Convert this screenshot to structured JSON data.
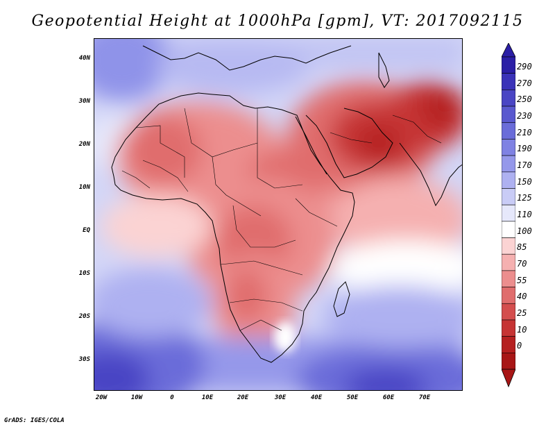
{
  "title": "Geopotential Height at 1000hPa [gpm], VT: 2017092115",
  "footer": "GrADS: IGES/COLA",
  "map": {
    "lon_range": [
      -25,
      80
    ],
    "lat_range": [
      -37,
      45
    ],
    "lat_ticks": [
      "40N",
      "30N",
      "20N",
      "10N",
      "EQ",
      "10S",
      "20S",
      "30S"
    ],
    "lon_ticks": [
      "20W",
      "10W",
      "0",
      "10E",
      "20E",
      "30E",
      "40E",
      "50E",
      "60E",
      "70E"
    ],
    "field": "geopotential height at 1000 hPa",
    "units": "gpm",
    "pattern": {
      "lows": [
        "Arabian Peninsula",
        "Pakistan/NW India",
        "Sahel/West Africa",
        "Central Africa",
        "Kalahari"
      ],
      "highs": [
        "Southern Ocean SW of Africa",
        "South Indian Ocean",
        "NE Atlantic near Iberia"
      ]
    }
  },
  "colorbar": {
    "levels": [
      "290",
      "270",
      "250",
      "230",
      "210",
      "190",
      "170",
      "150",
      "125",
      "110",
      "100",
      "85",
      "70",
      "55",
      "40",
      "25",
      "10",
      "0"
    ],
    "colors": [
      "#2b1fa6",
      "#3a32b8",
      "#4a45c4",
      "#5a59cf",
      "#6a6cd9",
      "#7f82e3",
      "#9598ea",
      "#aeb1f1",
      "#c9ccf6",
      "#e6e8fb",
      "#ffffff",
      "#fbd3d3",
      "#f5b0b0",
      "#ec8e8e",
      "#e06d6d",
      "#d44e4e",
      "#c63434",
      "#b52020",
      "#a81616"
    ]
  }
}
